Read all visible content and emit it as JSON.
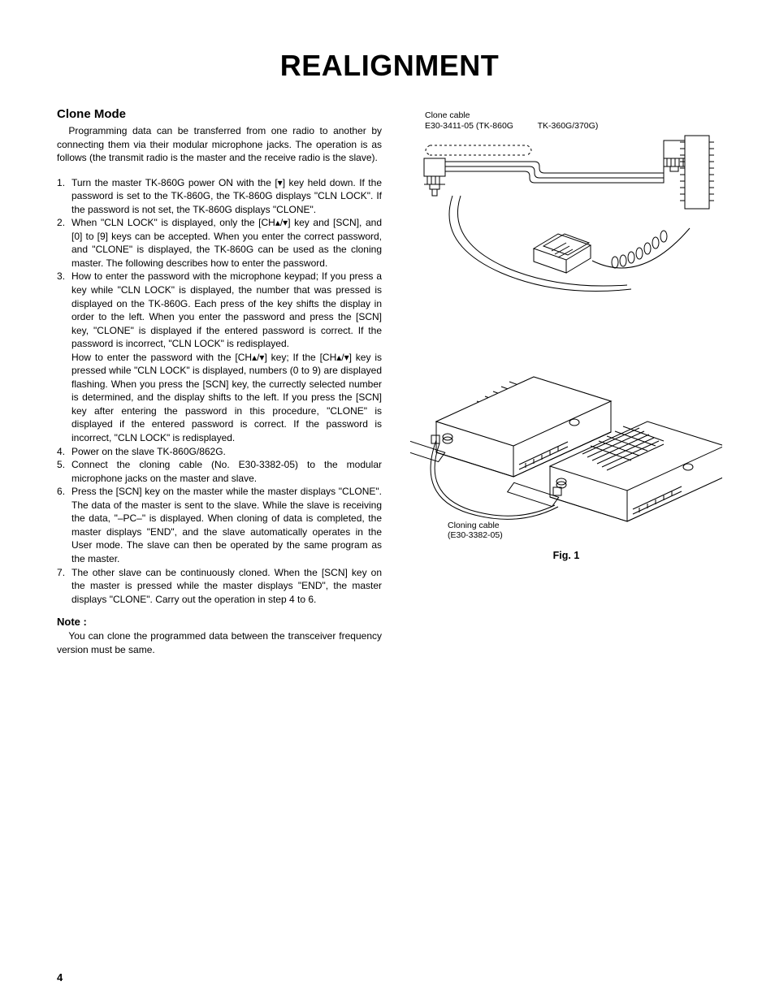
{
  "page": {
    "title": "REALIGNMENT",
    "number": "4"
  },
  "left": {
    "section_title": "Clone Mode",
    "intro": "Programming data can be transferred from one radio to another by connecting them via their modular microphone jacks.  The operation is as follows (the transmit radio is the master and the receive radio is the slave).",
    "steps": [
      "Turn the master TK-860G power ON with the [▾] key held down.  If the password is set to the TK-860G, the TK-860G displays \"CLN LOCK\".  If the password is not set, the TK-860G displays \"CLONE\".",
      "When \"CLN LOCK\" is displayed, only the [CH▴/▾] key and [SCN], and [0] to [9] keys can be accepted.  When you enter the correct password, and \"CLONE\" is displayed, the TK-860G can be used as the cloning master.  The following describes how to enter the password.",
      "How to enter the password with the microphone keypad; If you press a key while \"CLN LOCK\" is displayed, the number that was pressed is displayed on the TK-860G.  Each press of the key shifts the display in order to the left.  When you enter the password and press the [SCN] key, \"CLONE\" is displayed if the entered password is correct.  If the password is incorrect, \"CLN LOCK\" is redisplayed.\nHow to enter the password with the [CH▴/▾] key; If the [CH▴/▾] key is pressed while \"CLN LOCK\" is displayed, numbers (0 to 9) are displayed flashing.  When you press the [SCN] key, the currectly selected number is determined, and the display shifts to the left.  If you press the [SCN] key after entering the password in this procedure, \"CLONE\" is displayed if the entered password is correct.  If the password is incorrect, \"CLN LOCK\" is redisplayed.",
      "Power on the slave TK-860G/862G.",
      "Connect the cloning cable (No. E30-3382-05) to the modular microphone jacks on the master and slave.",
      "Press the [SCN] key on the master while the master displays \"CLONE\".  The data of the master is sent to the slave.  While the slave is receiving the data, \"–PC–\" is displayed.  When cloning of data is completed, the master displays \"END\", and the slave automatically operates in the User mode.  The slave can then be operated by the same program as the master.",
      "The other slave can be continuously cloned.  When the [SCN] key on the master is pressed while the master displays \"END\", the master displays \"CLONE\".  Carry out the operation in step 4 to 6."
    ],
    "note_head": "Note :",
    "note_body": "You can clone the programmed data between the transceiver frequency version must be same."
  },
  "right": {
    "cable_label_line1": "Clone cable",
    "cable_label_line2": "E30-3411-05 (TK-860G",
    "cable_label_right": "TK-360G/370G)",
    "cloning_cable_line1": "Cloning cable",
    "cloning_cable_line2": "(E30-3382-05)",
    "fig_caption": "Fig. 1"
  },
  "style": {
    "page_bg": "#ffffff",
    "text_color": "#000000",
    "title_fontsize_pt": 28,
    "body_fontsize_pt": 9,
    "line_stroke": "#000000",
    "line_width": 1
  }
}
